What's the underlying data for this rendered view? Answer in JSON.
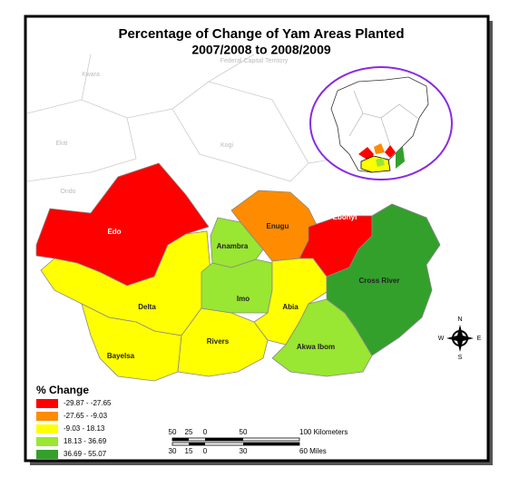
{
  "header": {
    "title": "Percentage of Change of Yam Areas Planted",
    "subtitle": "2007/2008 to 2008/2009"
  },
  "background_labels": [
    "Kwara",
    "Federal Capital Territory",
    "Ekiti",
    "Kogi",
    "Ondo"
  ],
  "states": [
    {
      "label": "Edo",
      "color": "#ff0000"
    },
    {
      "label": "Delta",
      "color": "#ffff00"
    },
    {
      "label": "Bayelsa",
      "color": "#ffff00"
    },
    {
      "label": "Rivers",
      "color": "#ffff00"
    },
    {
      "label": "Anambra",
      "color": "#99e633"
    },
    {
      "label": "Enugu",
      "color": "#ff8c00"
    },
    {
      "label": "Ebonyi",
      "color": "#ff0000"
    },
    {
      "label": "Imo",
      "color": "#99e633"
    },
    {
      "label": "Abia",
      "color": "#ffff00"
    },
    {
      "label": "Akwa Ibom",
      "color": "#99e633"
    },
    {
      "label": "Cross River",
      "color": "#33a02c"
    }
  ],
  "legend": {
    "title": "% Change",
    "items": [
      {
        "label": "-29.87 - -27.65",
        "color": "#ff0000"
      },
      {
        "label": "-27.65 - -9.03",
        "color": "#ff8c00"
      },
      {
        "label": "-9.03 - 18.13",
        "color": "#ffff00"
      },
      {
        "label": "18.13 - 36.69",
        "color": "#99e633"
      },
      {
        "label": "36.69 - 55.07",
        "color": "#33a02c"
      }
    ]
  },
  "scale": {
    "km": [
      "50",
      "25",
      "0",
      "50",
      "100 Kilometers"
    ],
    "miles": [
      "30",
      "15",
      "0",
      "30",
      "60 Miles"
    ]
  },
  "compass": [
    "N",
    "E",
    "S",
    "W"
  ]
}
